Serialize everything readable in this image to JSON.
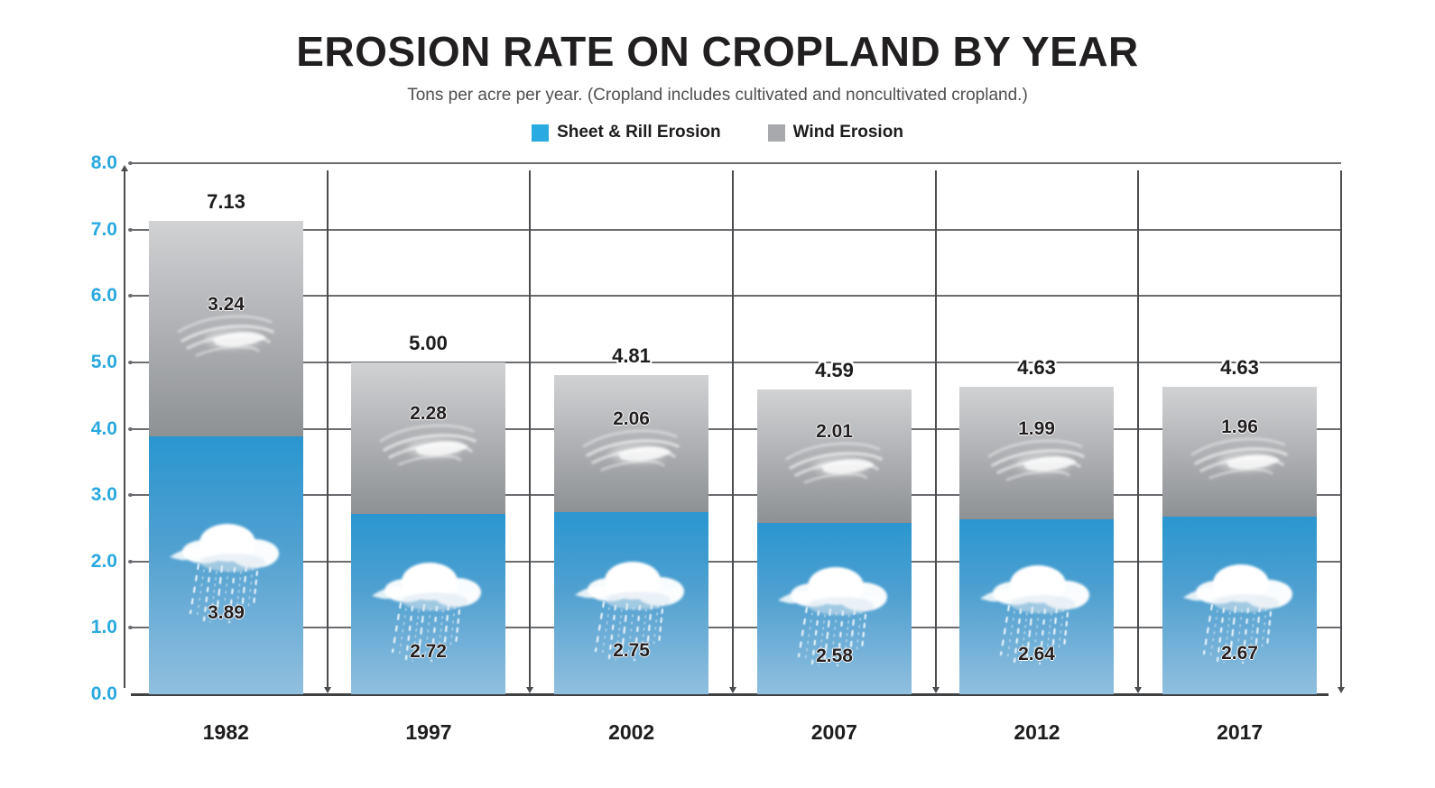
{
  "header": {
    "title": "EROSION RATE ON CROPLAND BY YEAR",
    "subtitle": "Tons per acre per year. (Cropland includes cultivated and noncultivated cropland.)"
  },
  "legend": {
    "items": [
      {
        "label": "Sheet & Rill Erosion",
        "color": "#29ABE2"
      },
      {
        "label": "Wind Erosion",
        "color": "#A7A9AC"
      }
    ]
  },
  "chart_data": {
    "type": "bar",
    "stacked": true,
    "title": "EROSION RATE ON CROPLAND BY YEAR",
    "subtitle": "Tons per acre per year. (Cropland includes cultivated and noncultivated cropland.)",
    "xlabel": "",
    "ylabel": "",
    "categories": [
      "1982",
      "1997",
      "2002",
      "2007",
      "2012",
      "2017"
    ],
    "series": [
      {
        "name": "Sheet & Rill Erosion",
        "values": [
          3.89,
          2.72,
          2.75,
          2.58,
          2.64,
          2.67
        ],
        "labels": [
          "3.89",
          "2.72",
          "2.75",
          "2.58",
          "2.64",
          "2.67"
        ],
        "color": "#29ABE2",
        "icon": "rain-cloud-icon"
      },
      {
        "name": "Wind Erosion",
        "values": [
          3.24,
          2.28,
          2.06,
          2.01,
          1.99,
          1.96
        ],
        "labels": [
          "3.24",
          "2.28",
          "2.06",
          "2.01",
          "1.99",
          "1.96"
        ],
        "color": "#A7A9AC",
        "icon": "wind-icon"
      }
    ],
    "totals": [
      7.13,
      5.0,
      4.81,
      4.59,
      4.63,
      4.63
    ],
    "total_labels": [
      "7.13",
      "5.00",
      "4.81",
      "4.59",
      "4.63",
      "4.63"
    ],
    "ylim": [
      0,
      8
    ],
    "yticks": [
      "0.0",
      "1.0",
      "2.0",
      "3.0",
      "4.0",
      "5.0",
      "6.0",
      "7.0",
      "8.0"
    ],
    "grid": true,
    "legend_position": "top",
    "colors": {
      "ytick_text": "#29A8E0",
      "grid_line": "#6A6C6F",
      "axis_line": "#4B4C4E",
      "value_text": "#231F20",
      "bar_blue_top": "#2A96D0",
      "bar_blue_bottom": "#91BFDF",
      "bar_gray_top": "#D0D2D4",
      "bar_gray_bottom": "#8E9194"
    }
  }
}
